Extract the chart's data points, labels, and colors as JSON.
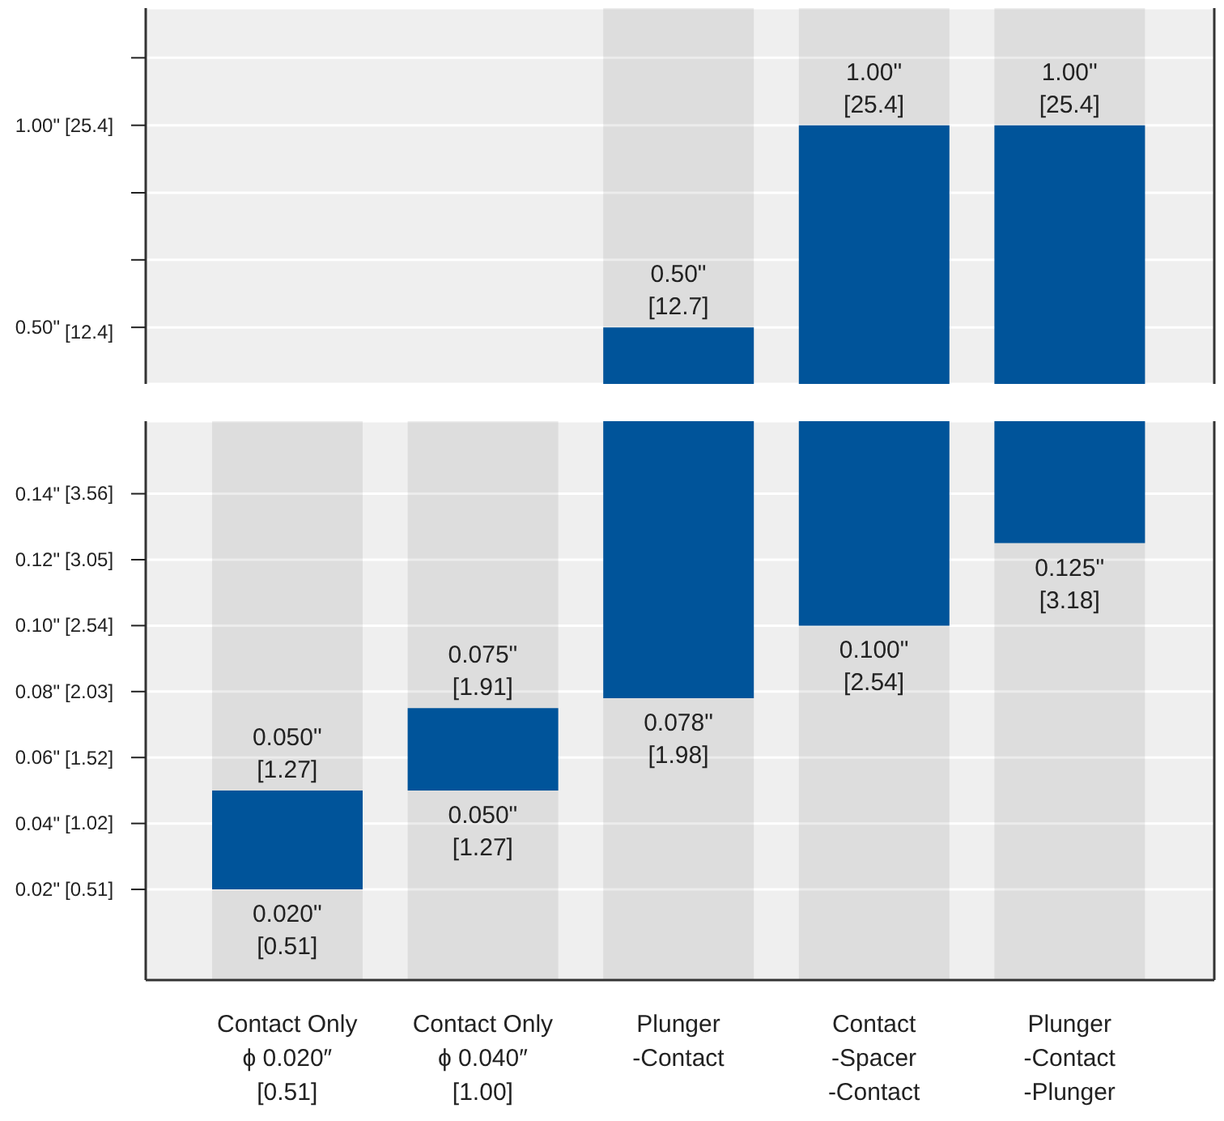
{
  "chart_data": [
    {
      "type": "bar",
      "categories": [
        "Contact Only\nϕ 0.020″\n[0.51]",
        "Contact Only\nϕ 0.040″\n[1.00]",
        "Plunger\n-Contact",
        "Contact\n-Spacer\n-Contact",
        "Plunger\n-Contact\n-Plunger"
      ],
      "base": [
        null,
        null,
        0.36,
        0.36,
        0.36
      ],
      "values": [
        null,
        null,
        0.14,
        0.64,
        0.64
      ],
      "color": "#00549a",
      "ylim": [
        0.36,
        1.29
      ],
      "yticks": [
        {
          "value": 0.5,
          "label": "0.50\""
        },
        {
          "value": 0.667,
          "label": null
        },
        {
          "value": 0.833,
          "label": null
        },
        {
          "value": 1.0,
          "label": "1.00\""
        },
        {
          "value": 1.167,
          "label": null
        }
      ],
      "y2lim": [
        9.144,
        32.766
      ],
      "y2ticks": [
        {
          "value": 12.4,
          "label": "[12.4]"
        },
        {
          "value": 25.4,
          "label": "[25.4]"
        }
      ],
      "grid": "y",
      "tick_labels": "y",
      "annotations": [
        {
          "text": "0.50\"\n[12.7]",
          "x": "Plunger\n-Contact",
          "y": 0.5
        },
        {
          "text": "1.00\"\n[25.4]",
          "x": "Contact\n-Spacer\n-Contact",
          "y": 1.0
        },
        {
          "text": "1.00\"\n[25.4]",
          "x": "Plunger\n-Contact\n-Plunger",
          "y": 1.0
        }
      ]
    },
    {
      "type": "bar",
      "categories": [
        "Contact Only\nϕ 0.020″\n[0.51]",
        "Contact Only\nϕ 0.040″\n[1.00]",
        "Plunger\n-Contact",
        "Contact\n-Spacer\n-Contact",
        "Plunger\n-Contact\n-Plunger"
      ],
      "base": [
        0.02,
        0.05,
        0.078,
        0.1,
        0.125
      ],
      "values": [
        0.03,
        0.025,
        0.084,
        0.062,
        0.037
      ],
      "color": "#00549a",
      "ylim": [
        -0.0075,
        0.162
      ],
      "yticks": [
        {
          "value": 0.02,
          "label": "0.02\""
        },
        {
          "value": 0.04,
          "label": "0.04\""
        },
        {
          "value": 0.06,
          "label": "0.06\""
        },
        {
          "value": 0.08,
          "label": "0.08\""
        },
        {
          "value": 0.1,
          "label": "0.10\""
        },
        {
          "value": 0.12,
          "label": "0.12\""
        },
        {
          "value": 0.14,
          "label": "0.14\""
        }
      ],
      "y2lim": [
        -0.1905,
        4.1148
      ],
      "y2ticks": [
        {
          "value": 0.51,
          "label": "[0.51]"
        },
        {
          "value": 1.02,
          "label": "[1.02]"
        },
        {
          "value": 1.52,
          "label": "[1.52]"
        },
        {
          "value": 2.03,
          "label": "[2.03]"
        },
        {
          "value": 2.54,
          "label": "[2.54]"
        },
        {
          "value": 3.05,
          "label": "[3.05]"
        },
        {
          "value": 3.56,
          "label": "[3.56]"
        }
      ],
      "grid": "y",
      "annotations": [
        {
          "text": "0.050\"\n[1.27]",
          "x": "Contact Only\nϕ 0.020″\n[0.51]",
          "y": 0.05
        },
        {
          "text": "0.020\"\n[0.51]",
          "x": "Contact Only\nϕ 0.020″\n[0.51]",
          "y": 0.02
        },
        {
          "text": "0.075\"\n[1.91]",
          "x": "Contact Only\nϕ 0.040″\n[1.00]",
          "y": 0.075
        },
        {
          "text": "0.050\"\n[1.27]",
          "x": "Contact Only\nϕ 0.040″\n[1.00]",
          "y": 0.05
        },
        {
          "text": "0.078\"\n[1.98]",
          "x": "Plunger\n-Contact",
          "y": 0.078
        },
        {
          "text": "0.100\"\n[2.54]",
          "x": "Contact\n-Spacer\n-Contact",
          "y": 0.1
        },
        {
          "text": "0.125\"\n[3.18]",
          "x": "Plunger\n-Contact\n-Plunger",
          "y": 0.125
        }
      ]
    }
  ]
}
